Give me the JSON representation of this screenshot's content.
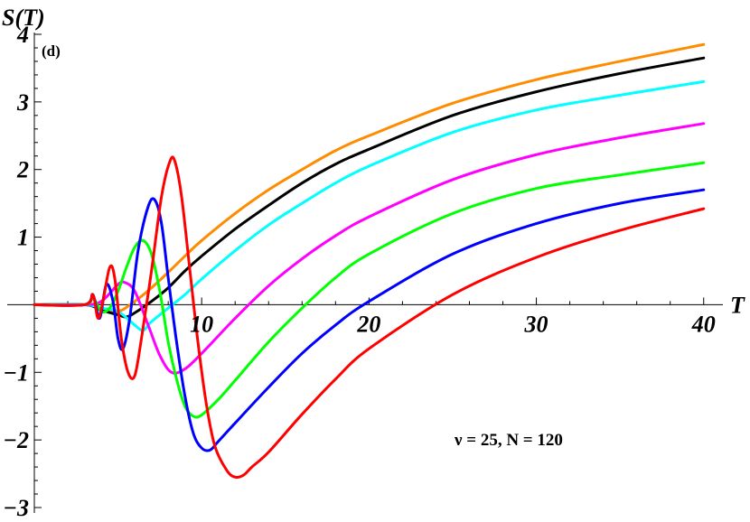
{
  "chart_data": {
    "type": "line",
    "ylabel": "S(T)",
    "xlabel": "T",
    "panel_label": "(d)",
    "annotation": "ν = 25, N = 120",
    "xlim": [
      0,
      40.5
    ],
    "ylim": [
      -3,
      4
    ],
    "x_ticks": [
      10,
      20,
      30,
      40
    ],
    "y_ticks": [
      -3,
      -2,
      -1,
      1,
      2,
      3,
      4
    ],
    "x_tick_labels": [
      "10",
      "20",
      "30",
      "40"
    ],
    "y_tick_labels": [
      "−3",
      "−2",
      "−1",
      "1",
      "2",
      "3",
      "4"
    ],
    "grid": false,
    "series": [
      {
        "color": "#ff8c00",
        "points": [
          [
            0,
            0
          ],
          [
            3,
            0
          ],
          [
            4,
            -0.05
          ],
          [
            5,
            -0.1
          ],
          [
            6,
            0.05
          ],
          [
            7,
            0.25
          ],
          [
            8,
            0.48
          ],
          [
            9,
            0.72
          ],
          [
            10,
            0.95
          ],
          [
            12,
            1.35
          ],
          [
            14,
            1.7
          ],
          [
            16,
            2.0
          ],
          [
            18,
            2.28
          ],
          [
            20,
            2.5
          ],
          [
            25,
            2.98
          ],
          [
            30,
            3.33
          ],
          [
            35,
            3.6
          ],
          [
            40,
            3.85
          ]
        ]
      },
      {
        "color": "#000000",
        "points": [
          [
            0,
            0
          ],
          [
            3,
            0
          ],
          [
            4,
            -0.08
          ],
          [
            5,
            -0.15
          ],
          [
            5.5,
            -0.18
          ],
          [
            6,
            -0.12
          ],
          [
            7,
            0.05
          ],
          [
            8,
            0.25
          ],
          [
            9,
            0.5
          ],
          [
            10,
            0.72
          ],
          [
            12,
            1.12
          ],
          [
            14,
            1.47
          ],
          [
            16,
            1.8
          ],
          [
            18,
            2.08
          ],
          [
            20,
            2.3
          ],
          [
            25,
            2.8
          ],
          [
            30,
            3.15
          ],
          [
            35,
            3.42
          ],
          [
            40,
            3.65
          ]
        ]
      },
      {
        "color": "#00ffff",
        "points": [
          [
            0,
            0
          ],
          [
            3,
            0
          ],
          [
            4,
            -0.05
          ],
          [
            5,
            -0.1
          ],
          [
            6,
            -0.3
          ],
          [
            6.5,
            -0.38
          ],
          [
            7,
            -0.25
          ],
          [
            8,
            -0.05
          ],
          [
            9,
            0.15
          ],
          [
            10,
            0.38
          ],
          [
            12,
            0.8
          ],
          [
            14,
            1.18
          ],
          [
            16,
            1.5
          ],
          [
            18,
            1.8
          ],
          [
            20,
            2.05
          ],
          [
            25,
            2.55
          ],
          [
            30,
            2.88
          ],
          [
            35,
            3.1
          ],
          [
            40,
            3.3
          ]
        ]
      },
      {
        "color": "#ff00ff",
        "points": [
          [
            0,
            0
          ],
          [
            3,
            0
          ],
          [
            4,
            0.05
          ],
          [
            5,
            0.3
          ],
          [
            5.4,
            0.33
          ],
          [
            6,
            0.2
          ],
          [
            6.8,
            -0.3
          ],
          [
            7.5,
            -0.75
          ],
          [
            8.2,
            -1.0
          ],
          [
            9,
            -0.95
          ],
          [
            10,
            -0.72
          ],
          [
            12,
            -0.2
          ],
          [
            14,
            0.28
          ],
          [
            16,
            0.68
          ],
          [
            18,
            1.02
          ],
          [
            20,
            1.3
          ],
          [
            25,
            1.85
          ],
          [
            30,
            2.22
          ],
          [
            35,
            2.47
          ],
          [
            40,
            2.68
          ]
        ]
      },
      {
        "color": "#00ff00",
        "points": [
          [
            0,
            0
          ],
          [
            3,
            0
          ],
          [
            3.5,
            0.1
          ],
          [
            4,
            -0.1
          ],
          [
            4.5,
            -0.05
          ],
          [
            5,
            0.2
          ],
          [
            5.5,
            0.55
          ],
          [
            6,
            0.85
          ],
          [
            6.5,
            0.95
          ],
          [
            7,
            0.75
          ],
          [
            7.5,
            0.2
          ],
          [
            8,
            -0.55
          ],
          [
            8.5,
            -1.1
          ],
          [
            9,
            -1.5
          ],
          [
            9.5,
            -1.65
          ],
          [
            10,
            -1.63
          ],
          [
            11,
            -1.4
          ],
          [
            12,
            -1.12
          ],
          [
            14,
            -0.55
          ],
          [
            16,
            -0.05
          ],
          [
            18,
            0.4
          ],
          [
            20,
            0.75
          ],
          [
            25,
            1.35
          ],
          [
            30,
            1.72
          ],
          [
            35,
            1.92
          ],
          [
            40,
            2.1
          ]
        ]
      },
      {
        "color": "#0000ff",
        "points": [
          [
            0,
            0
          ],
          [
            3,
            0
          ],
          [
            3.5,
            0.15
          ],
          [
            3.9,
            -0.2
          ],
          [
            4.3,
            0.3
          ],
          [
            4.7,
            0.05
          ],
          [
            5,
            -0.5
          ],
          [
            5.3,
            -0.65
          ],
          [
            5.7,
            -0.2
          ],
          [
            6.2,
            0.8
          ],
          [
            6.8,
            1.45
          ],
          [
            7.2,
            1.55
          ],
          [
            7.6,
            1.2
          ],
          [
            8,
            0.4
          ],
          [
            8.5,
            -0.55
          ],
          [
            9,
            -1.35
          ],
          [
            9.5,
            -1.9
          ],
          [
            10,
            -2.12
          ],
          [
            10.5,
            -2.15
          ],
          [
            11,
            -2.02
          ],
          [
            12,
            -1.75
          ],
          [
            14,
            -1.22
          ],
          [
            16,
            -0.72
          ],
          [
            18,
            -0.3
          ],
          [
            20,
            0.05
          ],
          [
            25,
            0.75
          ],
          [
            30,
            1.2
          ],
          [
            35,
            1.5
          ],
          [
            40,
            1.7
          ]
        ]
      },
      {
        "color": "#ff0000",
        "points": [
          [
            0,
            0
          ],
          [
            3,
            0
          ],
          [
            3.5,
            0.15
          ],
          [
            3.8,
            -0.2
          ],
          [
            4.1,
            0.05
          ],
          [
            4.5,
            0.55
          ],
          [
            4.8,
            0.4
          ],
          [
            5.2,
            -0.5
          ],
          [
            5.6,
            -1.0
          ],
          [
            6,
            -1.05
          ],
          [
            6.4,
            -0.5
          ],
          [
            7,
            0.5
          ],
          [
            7.6,
            1.6
          ],
          [
            8.1,
            2.12
          ],
          [
            8.4,
            2.12
          ],
          [
            8.8,
            1.6
          ],
          [
            9.3,
            0.5
          ],
          [
            9.8,
            -0.6
          ],
          [
            10.3,
            -1.5
          ],
          [
            10.8,
            -2.1
          ],
          [
            11.5,
            -2.45
          ],
          [
            12,
            -2.55
          ],
          [
            12.5,
            -2.52
          ],
          [
            13,
            -2.4
          ],
          [
            14,
            -2.18
          ],
          [
            16,
            -1.62
          ],
          [
            18,
            -1.1
          ],
          [
            20,
            -0.65
          ],
          [
            25,
            0.15
          ],
          [
            30,
            0.7
          ],
          [
            35,
            1.1
          ],
          [
            40,
            1.42
          ]
        ]
      }
    ]
  }
}
